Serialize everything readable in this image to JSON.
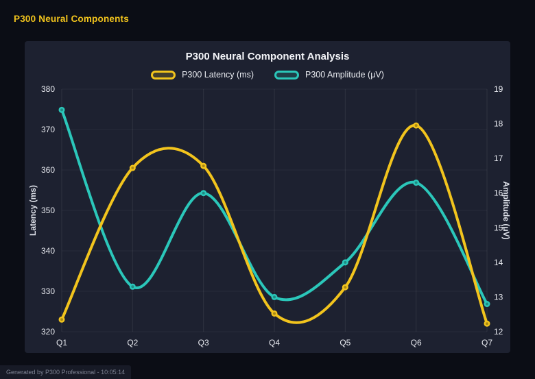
{
  "page": {
    "header": "P300 Neural Components",
    "footer": "Generated by P300 Professional - 10:05:14"
  },
  "colors": {
    "background": "#0b0d15",
    "panel": "#1d2130",
    "accent_yellow": "#f2c41d",
    "accent_teal": "#2bc7ba",
    "title_text": "#f2f3f7",
    "tick_text": "#e8eaf0"
  },
  "chart_data": {
    "type": "line",
    "title": "P300 Neural Component Analysis",
    "categories": [
      "Q1",
      "Q2",
      "Q3",
      "Q4",
      "Q5",
      "Q6",
      "Q7"
    ],
    "series": [
      {
        "name": "P300 Latency (ms)",
        "axis": "left",
        "color": "#f2c41d",
        "values": [
          323,
          360.5,
          361,
          324.5,
          331,
          371,
          322
        ]
      },
      {
        "name": "P300 Amplitude (μV)",
        "axis": "right",
        "color": "#2bc7ba",
        "values": [
          18.4,
          13.3,
          16.0,
          13.0,
          14.0,
          16.3,
          12.8
        ]
      }
    ],
    "left_axis": {
      "label": "Latency (ms)",
      "min": 320,
      "max": 380,
      "step": 10
    },
    "right_axis": {
      "label": "Amplitude (μV)",
      "min": 12,
      "max": 19,
      "step": 1
    },
    "grid": true,
    "legend_position": "top",
    "smooth": true
  }
}
